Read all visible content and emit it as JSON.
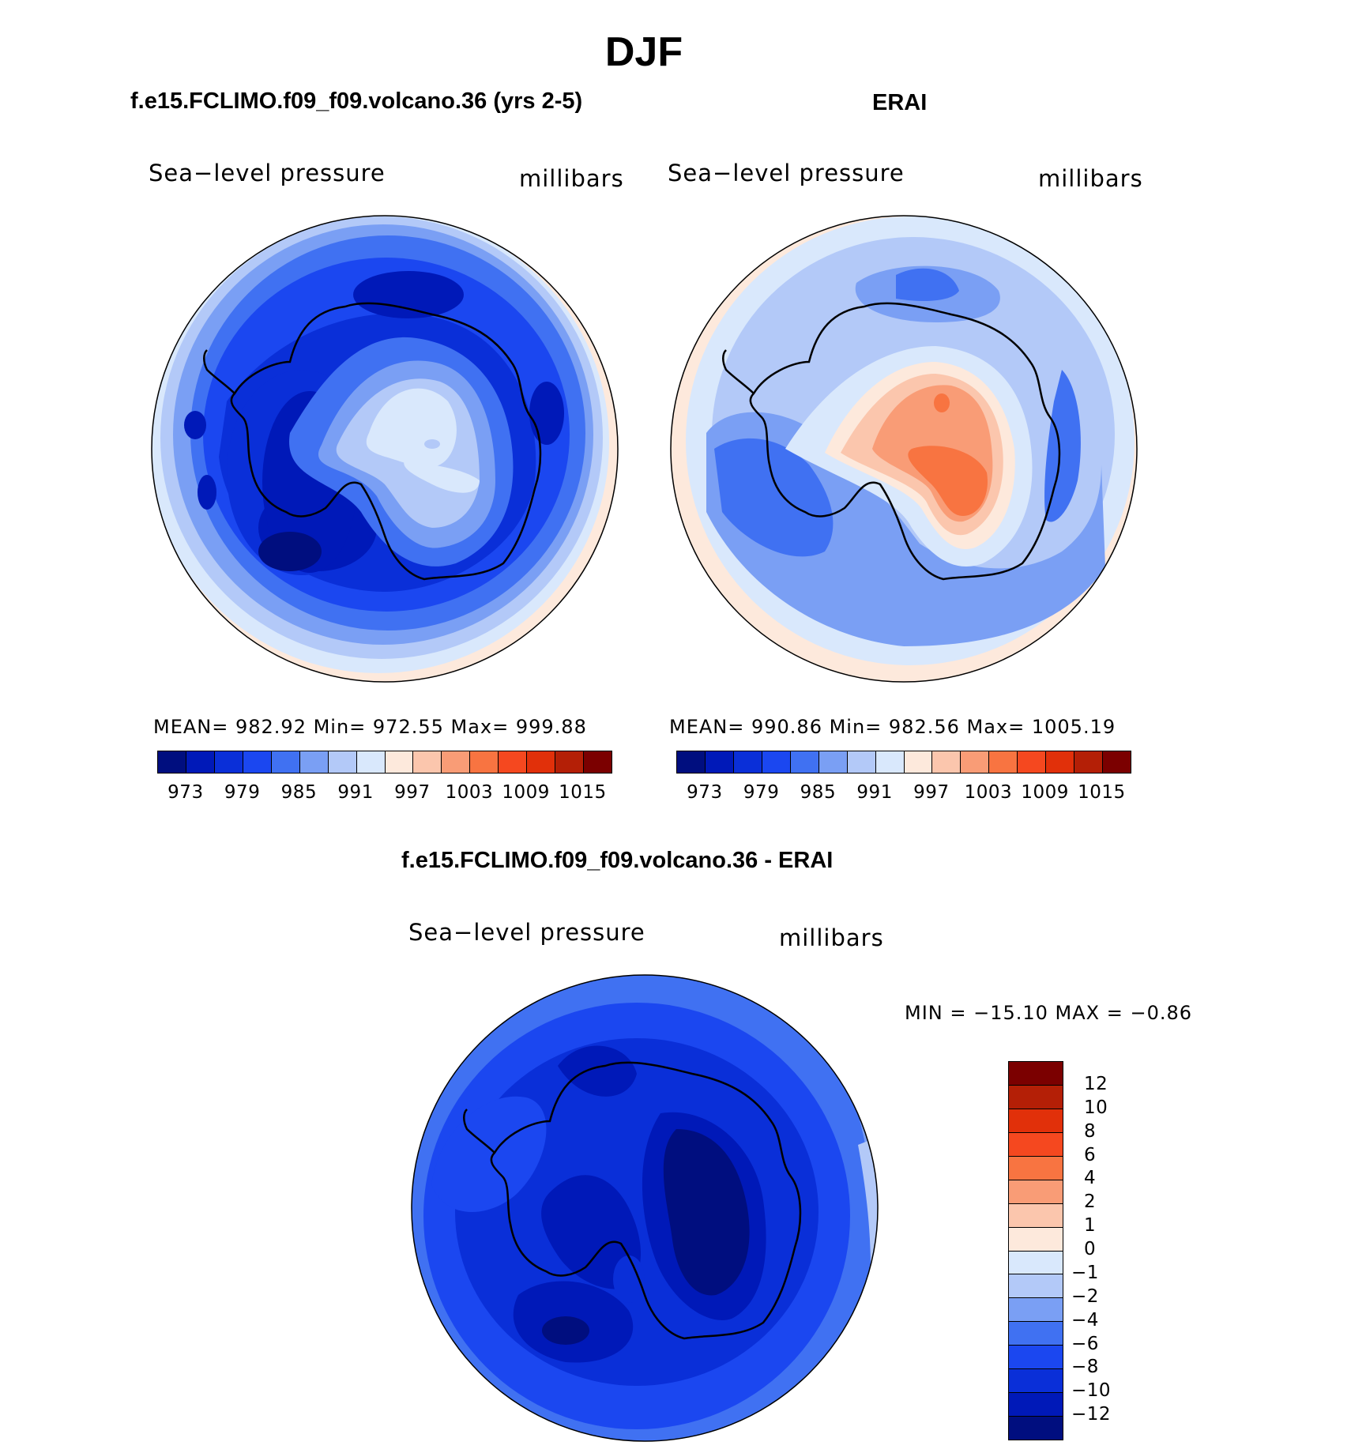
{
  "figure": {
    "season": "DJF"
  },
  "panels": [
    {
      "title": "f.e15.FCLIMO.f09_f09.volcano.36 (yrs 2-5)",
      "variable": "Sea−level pressure",
      "units": "millibars",
      "stats": "MEAN=  982.92    Min=  972.55    Max=  999.88",
      "mean": 982.92,
      "min": 972.55,
      "max": 999.88
    },
    {
      "title": "ERAI",
      "variable": "Sea−level pressure",
      "units": "millibars",
      "stats": "MEAN=  990.86    Min=  982.56    Max=  1005.19",
      "mean": 990.86,
      "min": 982.56,
      "max": 1005.19
    },
    {
      "title": "f.e15.FCLIMO.f09_f09.volcano.36 - ERAI",
      "variable": "Sea−level pressure",
      "units": "millibars",
      "stats": "MIN = −15.10 MAX =   −0.86",
      "min": -15.1,
      "max": -0.86
    }
  ],
  "colorbar_abs": {
    "colors": [
      "#000e7f",
      "#0019b8",
      "#0a2fd8",
      "#1b47f0",
      "#4071f2",
      "#7a9ff4",
      "#b3c9f8",
      "#d9e8fc",
      "#fde9dc",
      "#fbc6ad",
      "#f99c76",
      "#f87441",
      "#f5481f",
      "#e1300a",
      "#b41f06",
      "#7b0000"
    ],
    "tick_labels": [
      "973",
      "979",
      "985",
      "991",
      "997",
      "1003",
      "1009",
      "1015"
    ]
  },
  "colorbar_diff": {
    "colors": [
      "#7b0000",
      "#b41f06",
      "#e1300a",
      "#f5481f",
      "#f87441",
      "#f99c76",
      "#fbc6ad",
      "#fde9dc",
      "#d9e8fc",
      "#b3c9f8",
      "#7a9ff4",
      "#4071f2",
      "#1b47f0",
      "#0a2fd8",
      "#0019b8",
      "#000e7f"
    ],
    "tick_labels": [
      "12",
      "10",
      "8",
      "6",
      "4",
      "2",
      "1",
      "0",
      "−1",
      "−2",
      "−4",
      "−6",
      "−8",
      "−10",
      "−12"
    ]
  }
}
